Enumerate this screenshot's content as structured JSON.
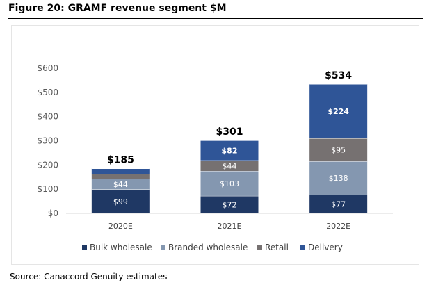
{
  "figure": {
    "title": "Figure 20: GRAMF revenue segment $M",
    "source": "Source: Canaccord Genuity estimates"
  },
  "chart_data": {
    "type": "bar",
    "stacked": true,
    "title": "Figure 20: GRAMF revenue segment $M",
    "categories": [
      "2020E",
      "2021E",
      "2022E"
    ],
    "ylim": [
      0,
      600
    ],
    "yticks": [
      0,
      100,
      200,
      300,
      400,
      500,
      600
    ],
    "ytick_labels": [
      "$0",
      "$100",
      "$200",
      "$300",
      "$400",
      "$500",
      "$600"
    ],
    "grid": false,
    "legend_position": "bottom",
    "series": [
      {
        "name": "Bulk wholesale",
        "color": "#1f3864",
        "values": [
          99,
          72,
          77
        ],
        "labels": [
          "$99",
          "$72",
          "$77"
        ],
        "bold": false
      },
      {
        "name": "Branded wholesale",
        "color": "#8497b0",
        "values": [
          44,
          103,
          138
        ],
        "labels": [
          "$44",
          "$103",
          "$138"
        ],
        "bold": false
      },
      {
        "name": "Retail",
        "color": "#767171",
        "values": [
          20,
          44,
          95
        ],
        "labels": [
          "",
          "$44",
          "$95"
        ],
        "bold": false
      },
      {
        "name": "Delivery",
        "color": "#2f5597",
        "values": [
          22,
          82,
          224
        ],
        "labels": [
          "",
          "$82",
          "$224"
        ],
        "bold": true
      }
    ],
    "totals": [
      185,
      301,
      534
    ],
    "total_labels": [
      "$185",
      "$301",
      "$534"
    ]
  }
}
